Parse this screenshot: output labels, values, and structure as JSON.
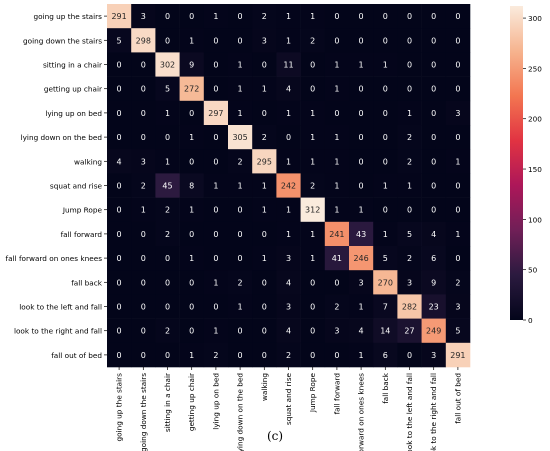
{
  "caption": "(c)",
  "chart_data": {
    "type": "heatmap",
    "title": "",
    "xlabel": "",
    "ylabel": "",
    "categories": [
      "going up the stairs",
      "going down the stairs",
      "sitting in a chair",
      "getting up chair",
      "lying up on bed",
      "lying down on the bed",
      "walking",
      "squat and rise",
      "Jump Rope",
      "fall forward",
      "fall forward on ones knees",
      "fall back",
      "look to the left and fall",
      "look to the right and fall",
      "fall out of bed"
    ],
    "matrix": [
      [
        291,
        3,
        0,
        0,
        1,
        0,
        2,
        1,
        1,
        0,
        0,
        0,
        0,
        0,
        0
      ],
      [
        5,
        298,
        0,
        1,
        0,
        0,
        3,
        1,
        2,
        0,
        0,
        0,
        0,
        0,
        0
      ],
      [
        0,
        0,
        302,
        9,
        0,
        1,
        0,
        11,
        0,
        1,
        1,
        1,
        0,
        0,
        0
      ],
      [
        0,
        0,
        5,
        272,
        0,
        1,
        1,
        4,
        0,
        1,
        0,
        0,
        0,
        0,
        0
      ],
      [
        0,
        0,
        1,
        0,
        297,
        1,
        0,
        1,
        1,
        0,
        0,
        0,
        1,
        0,
        3
      ],
      [
        0,
        0,
        0,
        1,
        0,
        305,
        2,
        0,
        1,
        1,
        0,
        0,
        2,
        0,
        0
      ],
      [
        4,
        3,
        1,
        0,
        0,
        2,
        295,
        1,
        1,
        1,
        0,
        0,
        2,
        0,
        1
      ],
      [
        0,
        2,
        45,
        8,
        1,
        1,
        1,
        242,
        2,
        1,
        0,
        1,
        1,
        0,
        0
      ],
      [
        0,
        1,
        2,
        1,
        0,
        0,
        1,
        1,
        312,
        1,
        1,
        0,
        0,
        0,
        0
      ],
      [
        0,
        0,
        2,
        0,
        0,
        0,
        0,
        1,
        1,
        241,
        43,
        1,
        5,
        4,
        1
      ],
      [
        0,
        0,
        0,
        1,
        0,
        0,
        1,
        3,
        1,
        41,
        246,
        5,
        2,
        6,
        0
      ],
      [
        0,
        0,
        0,
        0,
        1,
        2,
        0,
        4,
        0,
        0,
        3,
        270,
        3,
        9,
        2
      ],
      [
        0,
        0,
        0,
        0,
        0,
        1,
        0,
        3,
        0,
        2,
        1,
        7,
        282,
        23,
        3
      ],
      [
        0,
        0,
        2,
        0,
        1,
        0,
        0,
        4,
        0,
        3,
        4,
        14,
        27,
        249,
        5
      ],
      [
        0,
        0,
        0,
        1,
        2,
        0,
        0,
        2,
        0,
        0,
        1,
        6,
        0,
        3,
        291
      ]
    ],
    "colorbar": {
      "min": 0,
      "max": 312,
      "ticks": [
        0,
        50,
        100,
        150,
        200,
        250,
        300
      ],
      "colormap": "rocket",
      "stops": [
        "#03051a",
        "#2b1a3f",
        "#701f57",
        "#ad1759",
        "#e13342",
        "#f37651",
        "#f6b48f",
        "#faebdd"
      ]
    },
    "grid": false,
    "legend_position": "right"
  }
}
